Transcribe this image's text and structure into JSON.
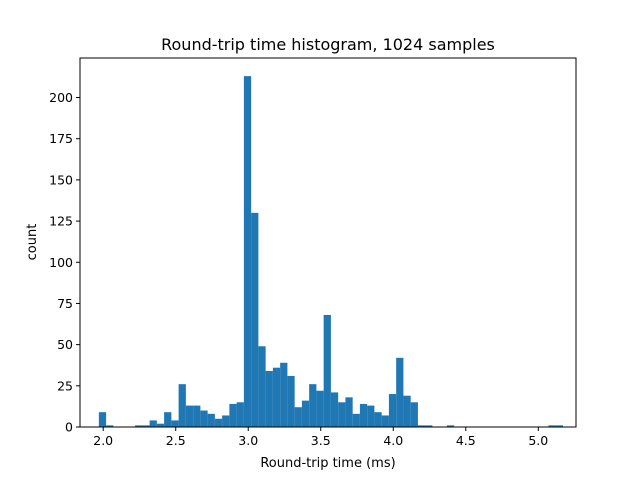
{
  "chart_data": {
    "type": "bar",
    "title": "Round-trip time histogram, 1024 samples",
    "xlabel": "Round-trip time (ms)",
    "ylabel": "count",
    "xlim": [
      1.84,
      5.26
    ],
    "ylim": [
      0,
      224
    ],
    "xticks": [
      "2.0",
      "2.5",
      "3.0",
      "3.5",
      "4.0",
      "4.5",
      "5.0"
    ],
    "yticks": [
      "0",
      "25",
      "50",
      "75",
      "100",
      "125",
      "150",
      "175",
      "200"
    ],
    "bin_edges": [
      1.97,
      2.02,
      2.07,
      2.12,
      2.17,
      2.22,
      2.27,
      2.32,
      2.37,
      2.42,
      2.47,
      2.52,
      2.57,
      2.62,
      2.67,
      2.72,
      2.77,
      2.82,
      2.87,
      2.92,
      2.97,
      3.02,
      3.07,
      3.12,
      3.17,
      3.22,
      3.27,
      3.32,
      3.37,
      3.42,
      3.47,
      3.52,
      3.57,
      3.62,
      3.67,
      3.72,
      3.77,
      3.82,
      3.87,
      3.92,
      3.97,
      4.02,
      4.07,
      4.12,
      4.17,
      4.22,
      4.27,
      4.32,
      4.37,
      4.42,
      4.47,
      4.52,
      4.57,
      4.62,
      4.67,
      4.72,
      4.77,
      4.82,
      4.87,
      4.92,
      4.97,
      5.02,
      5.07,
      5.12,
      5.17
    ],
    "counts": [
      9,
      1,
      0,
      0,
      0,
      1,
      1,
      4,
      2,
      9,
      4,
      26,
      13,
      13,
      10,
      8,
      5,
      7,
      14,
      15,
      213,
      130,
      49,
      34,
      36,
      39,
      31,
      12,
      16,
      26,
      22,
      68,
      21,
      15,
      18,
      8,
      14,
      13,
      9,
      7,
      20,
      42,
      19,
      15,
      1,
      1,
      0,
      0,
      1,
      0,
      0,
      0,
      0,
      0,
      0,
      0,
      0,
      0,
      0,
      0,
      0,
      0,
      1,
      1
    ],
    "bar_color": "#1f77b4",
    "grid": false
  }
}
